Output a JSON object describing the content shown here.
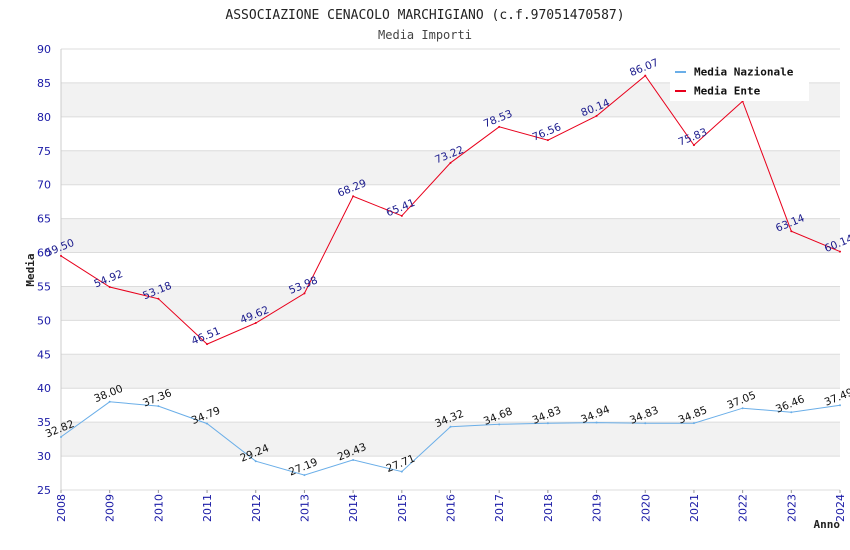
{
  "chart_data": {
    "type": "line",
    "title": "ASSOCIAZIONE CENACOLO MARCHIGIANO (c.f.97051470587)",
    "subtitle": "Media Importi",
    "xlabel": "Anno",
    "ylabel": "Media",
    "ylim": [
      25,
      90
    ],
    "ytick_step": 5,
    "grid": "horizontal alternating bands",
    "legend_position": "top-right",
    "x": [
      "2008",
      "2009",
      "2010",
      "2011",
      "2012",
      "2013",
      "2014",
      "2015",
      "2016",
      "2017",
      "2018",
      "2019",
      "2020",
      "2021",
      "2022",
      "2023",
      "2024"
    ],
    "series": [
      {
        "name": "Media Nazionale",
        "color": "#6aaee8",
        "values": [
          32.82,
          38.0,
          37.36,
          34.79,
          29.24,
          27.19,
          29.43,
          27.71,
          34.32,
          34.68,
          34.83,
          34.94,
          34.83,
          34.85,
          37.05,
          36.46,
          37.49
        ],
        "labels": [
          "32.82",
          "38.00",
          "37.36",
          "34.79",
          "29.24",
          "27.19",
          "29.43",
          "27.71",
          "34.32",
          "34.68",
          "34.83",
          "34.94",
          "34.83",
          "34.85",
          "37.05",
          "36.46",
          "37.49"
        ]
      },
      {
        "name": "Media Ente",
        "color": "#e8001c",
        "values": [
          59.5,
          54.92,
          53.18,
          46.51,
          49.62,
          53.98,
          68.29,
          65.41,
          73.22,
          78.53,
          76.56,
          80.14,
          86.07,
          75.83,
          82.3,
          63.14,
          60.14
        ],
        "labels": [
          "59.50",
          "54.92",
          "53.18",
          "46.51",
          "49.62",
          "53.98",
          "68.29",
          "65.41",
          "73.22",
          "78.53",
          "76.56",
          "80.14",
          "86.07",
          "75.83",
          "",
          "63.14",
          "60.14"
        ]
      }
    ]
  }
}
